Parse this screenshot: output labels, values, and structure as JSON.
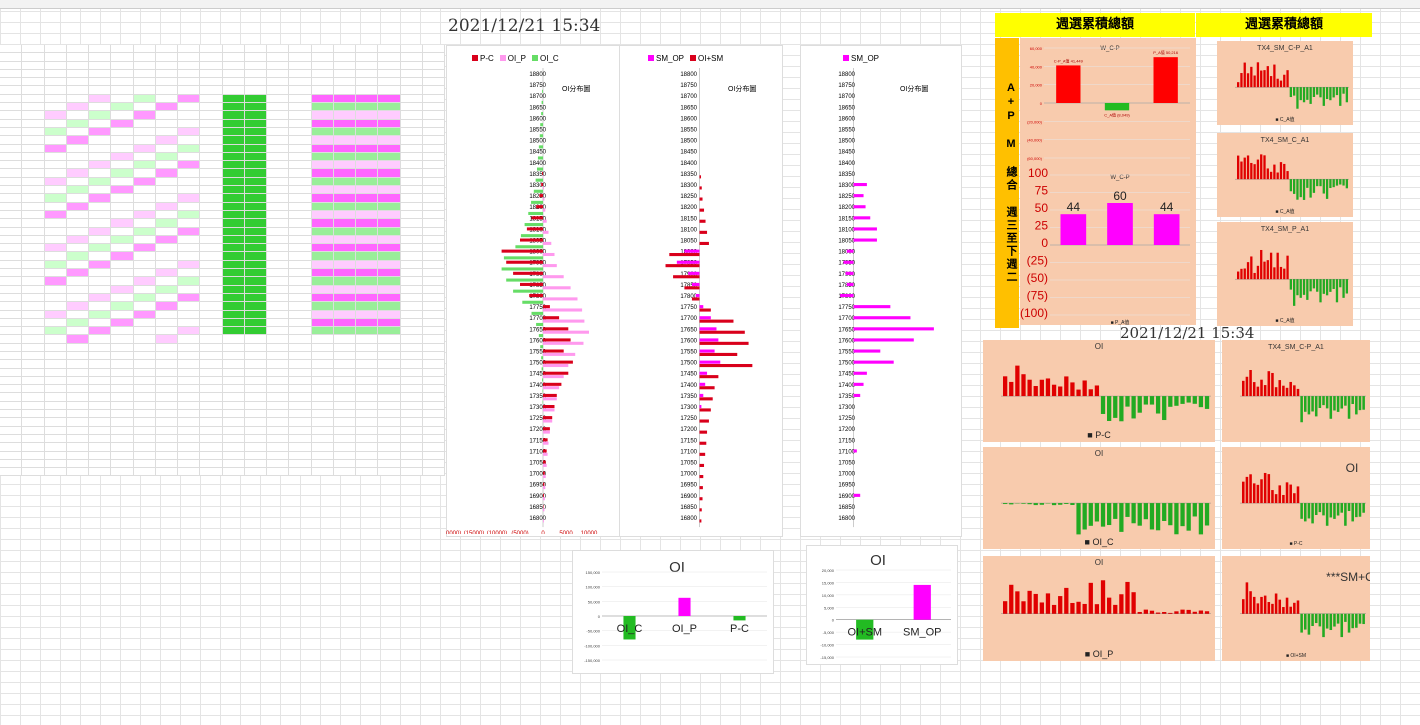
{
  "header": {
    "timestamp": "2021/12/21 15:34",
    "weekly_total_left": "週選累積總額",
    "weekly_total_right": "週選累積總額",
    "banner_text": "A+P M 總合 週三至下週二"
  },
  "ladder_charts": [
    {
      "id": "oi-ladder",
      "label": "OI分布圖",
      "legend": [
        {
          "name": "P-C",
          "color": "#d9001b"
        },
        {
          "name": "OI_P",
          "color": "#ff99ee"
        },
        {
          "name": "OI_C",
          "color": "#66dd66"
        }
      ]
    },
    {
      "id": "smop-ladder",
      "label": "OI分布圖",
      "legend": [
        {
          "name": "SM_OP",
          "color": "#ff00ff"
        },
        {
          "name": "OI+SM",
          "color": "#d9001b"
        }
      ]
    },
    {
      "id": "sm-ladder",
      "label": "OI分布圖",
      "legend": [
        {
          "name": "SM_OP",
          "color": "#ff00ff"
        }
      ]
    }
  ],
  "chart_data": [
    {
      "type": "bar",
      "orientation": "horizontal",
      "name": "OI ladder",
      "strikes": [
        18800,
        18750,
        18700,
        18650,
        18600,
        18550,
        18500,
        18450,
        18400,
        18350,
        18300,
        18250,
        18200,
        18150,
        18100,
        18050,
        18000,
        17950,
        17900,
        17850,
        17800,
        17750,
        17700,
        17650,
        17600,
        17550,
        17500,
        17450,
        17400,
        17350,
        17300,
        17250,
        17200,
        17150,
        17100,
        17050,
        17000,
        16950,
        16900,
        16850,
        16800
      ],
      "series": [
        {
          "name": "P-C",
          "values": [
            0,
            0,
            0,
            0,
            0,
            0,
            0,
            0,
            0,
            -200,
            -400,
            -800,
            -1500,
            -2500,
            -3500,
            -5000,
            -9000,
            -8000,
            -6500,
            -5000,
            -3000,
            1500,
            3500,
            5500,
            6000,
            4500,
            6500,
            5500,
            4000,
            3000,
            2500,
            2000,
            1500,
            1000,
            800,
            600,
            400,
            300,
            200,
            100,
            0
          ]
        },
        {
          "name": "OI_P",
          "values": [
            0,
            0,
            0,
            0,
            0,
            0,
            0,
            0,
            0,
            100,
            200,
            300,
            500,
            800,
            1200,
            1800,
            2500,
            3000,
            4500,
            6000,
            7500,
            8500,
            9000,
            10000,
            8800,
            7000,
            5500,
            4500,
            3500,
            3000,
            2500,
            2000,
            1500,
            1200,
            1000,
            800,
            600,
            500,
            400,
            300,
            200
          ]
        },
        {
          "name": "OI_C",
          "values": [
            0,
            -200,
            -300,
            -400,
            -600,
            -700,
            -900,
            -1100,
            -1300,
            -1600,
            -2000,
            -2600,
            -3200,
            -4000,
            -4800,
            -6000,
            -8500,
            -9000,
            -8000,
            -6500,
            -4500,
            -2500,
            -1500,
            -900,
            -600,
            -400,
            -300,
            -200,
            -100,
            -100,
            0,
            0,
            0,
            0,
            0,
            0,
            0,
            0,
            0,
            0,
            0
          ]
        }
      ],
      "xlim": [
        -20000,
        15000
      ],
      "x_ticks": [
        "(20000)",
        "(15000)",
        "(10000)",
        "(5000)",
        "0",
        "5000",
        "10000"
      ]
    },
    {
      "type": "bar",
      "orientation": "horizontal",
      "name": "SM_OP / OI+SM ladder",
      "strikes": [
        18800,
        18750,
        18700,
        18650,
        18600,
        18550,
        18500,
        18450,
        18400,
        18350,
        18300,
        18250,
        18200,
        18150,
        18100,
        18050,
        18000,
        17950,
        17900,
        17850,
        17800,
        17750,
        17700,
        17650,
        17600,
        17550,
        17500,
        17450,
        17400,
        17350,
        17300,
        17250,
        17200,
        17150,
        17100,
        17050,
        17000,
        16950,
        16900,
        16850,
        16800
      ],
      "series": [
        {
          "name": "SM_OP",
          "values": [
            0,
            0,
            0,
            0,
            0,
            0,
            0,
            0,
            0,
            0,
            0,
            0,
            0,
            0,
            0,
            0,
            -4000,
            -6000,
            -3000,
            -2000,
            -1000,
            1000,
            3000,
            4500,
            5000,
            4000,
            5500,
            2000,
            1500,
            1000,
            500,
            0,
            0,
            0,
            0,
            0,
            0,
            0,
            0,
            0,
            0
          ]
        },
        {
          "name": "OI+SM",
          "values": [
            0,
            0,
            0,
            0,
            0,
            0,
            0,
            0,
            0,
            400,
            600,
            800,
            1200,
            1600,
            2000,
            2500,
            -8000,
            -9000,
            -7000,
            -4000,
            -2000,
            3000,
            9000,
            12000,
            13000,
            10000,
            14000,
            5000,
            4000,
            3500,
            3000,
            2500,
            2000,
            1800,
            1500,
            1200,
            1000,
            900,
            800,
            600,
            500
          ]
        }
      ],
      "xlim": [
        -20000,
        20000
      ]
    },
    {
      "type": "bar",
      "orientation": "horizontal",
      "name": "SM_OP ladder",
      "strikes": [
        18800,
        18750,
        18700,
        18650,
        18600,
        18550,
        18500,
        18450,
        18400,
        18350,
        18300,
        18250,
        18200,
        18150,
        18100,
        18050,
        18000,
        17950,
        17900,
        17850,
        17800,
        17750,
        17700,
        17650,
        17600,
        17550,
        17500,
        17450,
        17400,
        17350,
        17300,
        17250,
        17200,
        17150,
        17100,
        17050,
        17000,
        16950,
        16900,
        16850,
        16800
      ],
      "series": [
        {
          "name": "SM_OP",
          "values": [
            0,
            0,
            0,
            0,
            0,
            0,
            0,
            0,
            0,
            0,
            2000,
            1500,
            1800,
            2500,
            3500,
            3500,
            -1000,
            -1500,
            -1200,
            -1000,
            -2000,
            5500,
            8500,
            12000,
            9000,
            4000,
            6000,
            2000,
            1500,
            1000,
            0,
            0,
            0,
            0,
            500,
            0,
            0,
            0,
            1000,
            0,
            0
          ]
        }
      ],
      "xlim": [
        -5000,
        15000
      ]
    },
    {
      "type": "bar",
      "name": "OI summary",
      "title": "OI",
      "categories": [
        "OI_C",
        "OI_P",
        "P-C"
      ],
      "values": [
        -80000,
        62000,
        -15000
      ],
      "colors": [
        "#22bb22",
        "#ff00ff",
        "#22bb22"
      ],
      "ylim": [
        -150000,
        150000
      ],
      "y_ticks": [
        "150,000",
        "100,000",
        "50,000",
        "0",
        "-50,000",
        "-100,000",
        "-150,000"
      ]
    },
    {
      "type": "bar",
      "name": "OI+SM summary",
      "title": "OI",
      "categories": [
        "OI+SM",
        "SM_OP"
      ],
      "values": [
        -8000,
        14000
      ],
      "colors": [
        "#22bb22",
        "#ff00ff"
      ],
      "ylim": [
        -15000,
        20000
      ],
      "y_ticks": [
        "20,000",
        "15,000",
        "10,000",
        "5,000",
        "0",
        "-5,000",
        "-10,000",
        "-15,000"
      ]
    },
    {
      "type": "bar",
      "name": "W_C-P",
      "title": "W_C-P",
      "categories": [
        "C-P_A值",
        "C_A值",
        "P_A值"
      ],
      "values": [
        41000,
        -8000,
        50000
      ],
      "colors": [
        "#ff0000",
        "#22bb22",
        "#ff0000"
      ],
      "labels": [
        "C-P_A值 41,449",
        "C_A值 (8,049)",
        "P_A值 50,216"
      ],
      "ylim": [
        -60000,
        60000
      ],
      "y_ticks": [
        "60,000",
        "40,000",
        "20,000",
        "0",
        "(20,000)",
        "(40,000)",
        "(60,000)"
      ]
    },
    {
      "type": "bar",
      "name": "W_C-P small",
      "title": "W_C-P",
      "categories": [
        "A",
        "B",
        "C"
      ],
      "values": [
        44,
        60,
        44
      ],
      "data_labels": [
        "44",
        "60",
        "44"
      ],
      "colors": [
        "#ff00ff",
        "#ff00ff",
        "#ff00ff"
      ],
      "ylim": [
        -100,
        100
      ],
      "y_ticks": [
        "100",
        "75",
        "50",
        "25",
        "0",
        "(25)",
        "(50)",
        "(75)",
        "(100)"
      ],
      "legend": "P_A值"
    }
  ],
  "mini_charts": [
    {
      "title": "TX4_SM_C-P_A1",
      "legend": "C_A值"
    },
    {
      "title": "TX4_SM_C_A1",
      "legend": "C_A值"
    },
    {
      "title": "TX4_SM_P_A1",
      "legend": "C_A值"
    },
    {
      "title": "OI",
      "legend": "P-C"
    },
    {
      "title": "TX4_SM_C-P_A1",
      "legend": ""
    },
    {
      "title": "OI",
      "legend": "OI_C"
    },
    {
      "title": "OI",
      "legend": "P-C"
    },
    {
      "title": "OI",
      "legend": "OI_P"
    },
    {
      "title": "***SM+OI",
      "legend": "OI+SM"
    }
  ],
  "colors": {
    "red": "#e00000",
    "green": "#22aa22",
    "magenta": "#ff00ff",
    "pink": "#ff99ee",
    "lightgreen": "#66dd66",
    "orange": "#f8cbad",
    "yellow": "#ffff00",
    "gold": "#ffc000"
  }
}
